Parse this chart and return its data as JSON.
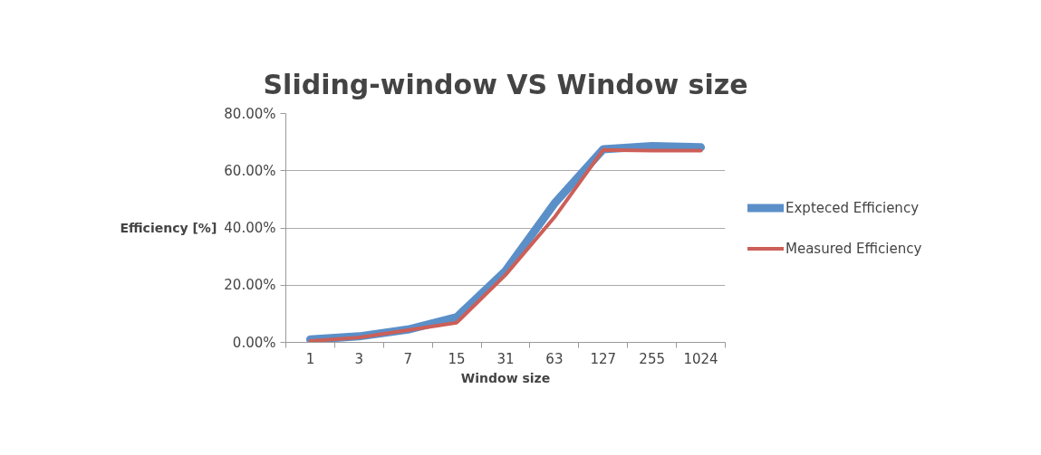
{
  "chart_data": {
    "type": "line",
    "title": "Sliding-window VS Window size",
    "xlabel": "Window size",
    "ylabel": "Efficiency [%]",
    "categories": [
      "1",
      "3",
      "7",
      "15",
      "31",
      "63",
      "127",
      "255",
      "1024"
    ],
    "series": [
      {
        "name": "Expteced Efficiency",
        "color": "#5b8fc8",
        "values": [
          1.0,
          2.1,
          4.5,
          8.8,
          25.0,
          48.5,
          67.5,
          68.6,
          68.2
        ]
      },
      {
        "name": "Measured Efficiency",
        "color": "#cc5f58",
        "values": [
          0.5,
          1.7,
          4.3,
          6.9,
          23.6,
          43.7,
          67.3,
          67.0,
          67.0
        ]
      }
    ],
    "ylim": [
      0,
      80
    ],
    "yticks": [
      {
        "value": 0,
        "label": "0.00%"
      },
      {
        "value": 20,
        "label": "20.00%"
      },
      {
        "value": 40,
        "label": "40.00%"
      },
      {
        "value": 60,
        "label": "60.00%"
      },
      {
        "value": 80,
        "label": "80.00%"
      }
    ],
    "grid": "y",
    "legend": "right",
    "marker": "none",
    "line_style": "solid"
  }
}
